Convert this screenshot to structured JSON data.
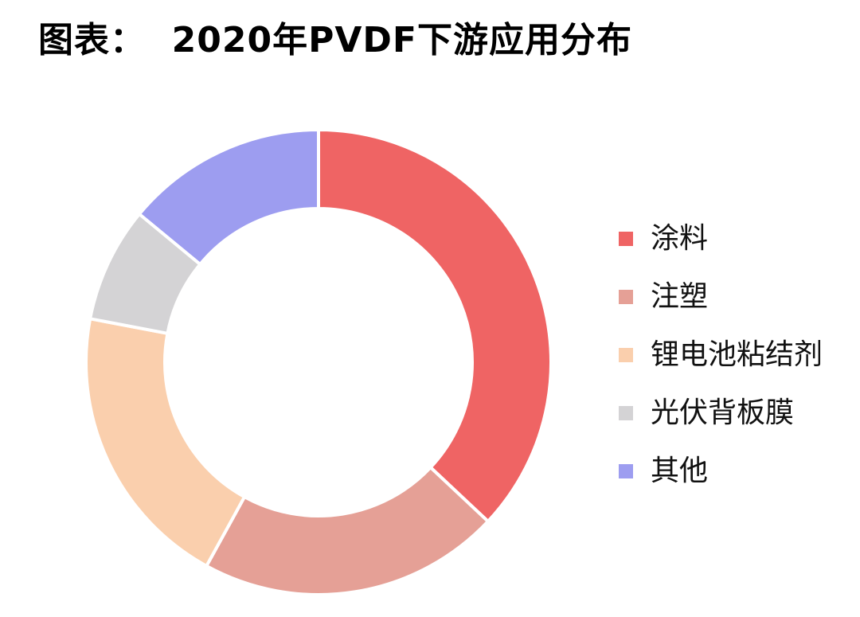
{
  "title": "图表：  2020年PVDF下游应用分布",
  "chart_data": {
    "type": "pie",
    "subtype": "donut",
    "title": "图表：  2020年PVDF下游应用分布",
    "categories": [
      "涂料",
      "注塑",
      "锂电池粘结剂",
      "光伏背板膜",
      "其他"
    ],
    "values": [
      37,
      21,
      20,
      8,
      14
    ],
    "unit": "%",
    "colors": [
      "#ef6464",
      "#e5a096",
      "#facfad",
      "#d4d3d5",
      "#9d9df0"
    ],
    "start_angle_deg": 0,
    "direction": "clockwise",
    "legend_position": "right",
    "data_labels": false
  },
  "legend": {
    "items": [
      {
        "label": "涂料",
        "color": "#ef6464"
      },
      {
        "label": "注塑",
        "color": "#e5a096"
      },
      {
        "label": "锂电池粘结剂",
        "color": "#facfad"
      },
      {
        "label": "光伏背板膜",
        "color": "#d4d3d5"
      },
      {
        "label": "其他",
        "color": "#9d9df0"
      }
    ]
  }
}
